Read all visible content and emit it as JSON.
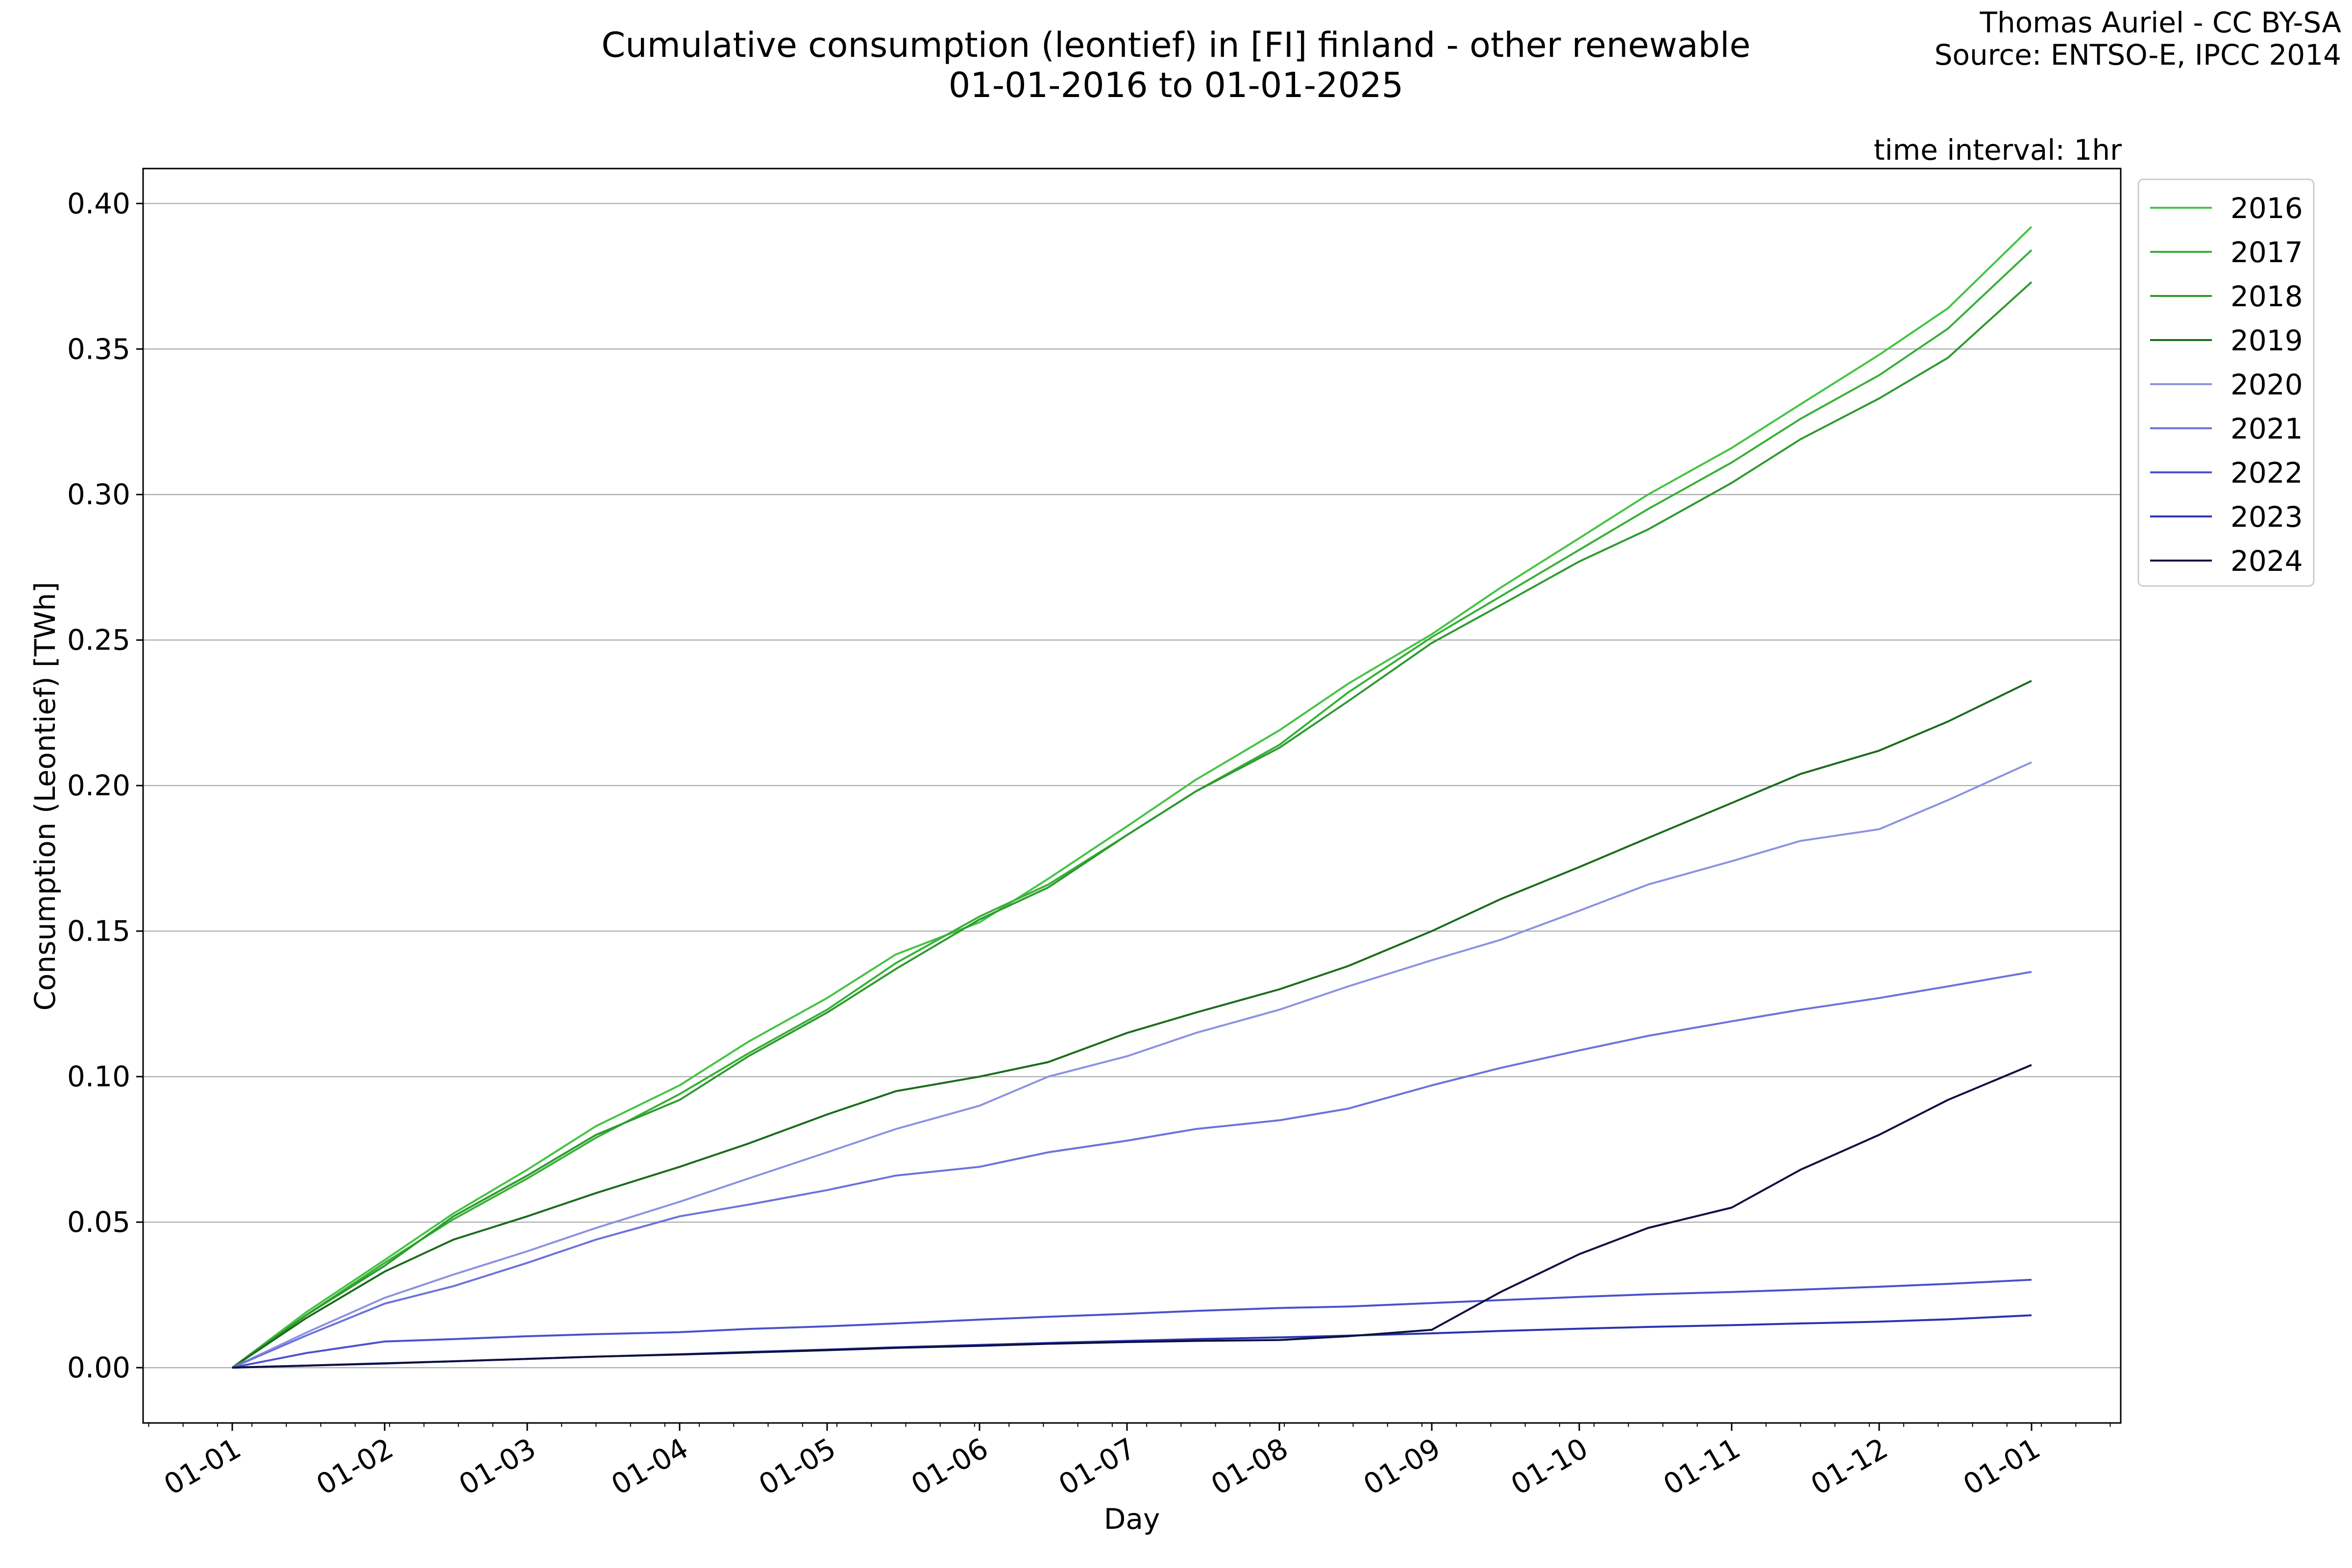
{
  "header": {
    "title_line1": "Cumulative consumption (leontief) in [FI] finland - other renewable",
    "title_line2": "01-01-2016 to 01-01-2025",
    "credit_line1": "Thomas Auriel - CC BY-SA",
    "credit_line2": "Source: ENTSO-E, IPCC 2014",
    "interval_note": "time interval: 1hr"
  },
  "chart_data": {
    "type": "line",
    "xlabel": "Day",
    "ylabel": "Consumption (Leontief) [TWh]",
    "ylim": [
      -0.019,
      0.412
    ],
    "y_ticks": [
      0.0,
      0.05,
      0.1,
      0.15,
      0.2,
      0.25,
      0.3,
      0.35,
      0.4
    ],
    "y_tick_labels": [
      "0.00",
      "0.05",
      "0.10",
      "0.15",
      "0.20",
      "0.25",
      "0.30",
      "0.35",
      "0.40"
    ],
    "x_ticks": [
      "01-01",
      "01-02",
      "01-03",
      "01-04",
      "01-05",
      "01-06",
      "01-07",
      "01-08",
      "01-09",
      "01-10",
      "01-11",
      "01-12",
      "01-01"
    ],
    "grid": "horizontal",
    "legend_position": "outside top-right",
    "x": [
      "01-01",
      "01-16",
      "02-01",
      "02-15",
      "03-01",
      "03-15",
      "04-01",
      "04-15",
      "05-01",
      "05-15",
      "06-01",
      "06-15",
      "07-01",
      "07-15",
      "08-01",
      "08-15",
      "09-01",
      "09-15",
      "10-01",
      "10-15",
      "11-01",
      "11-15",
      "12-01",
      "12-15",
      "12-31"
    ],
    "series": [
      {
        "name": "2016",
        "color": "#44c344",
        "values": [
          0.0,
          0.019,
          0.037,
          0.053,
          0.068,
          0.083,
          0.097,
          0.112,
          0.127,
          0.142,
          0.153,
          0.168,
          0.186,
          0.202,
          0.219,
          0.235,
          0.252,
          0.268,
          0.285,
          0.3,
          0.316,
          0.331,
          0.348,
          0.364,
          0.392
        ]
      },
      {
        "name": "2017",
        "color": "#37b037",
        "values": [
          0.0,
          0.018,
          0.036,
          0.051,
          0.065,
          0.079,
          0.094,
          0.108,
          0.123,
          0.139,
          0.155,
          0.166,
          0.183,
          0.198,
          0.214,
          0.232,
          0.251,
          0.265,
          0.281,
          0.295,
          0.311,
          0.326,
          0.341,
          0.357,
          0.384
        ]
      },
      {
        "name": "2018",
        "color": "#2e9a2e",
        "values": [
          0.0,
          0.018,
          0.035,
          0.052,
          0.066,
          0.08,
          0.092,
          0.107,
          0.122,
          0.137,
          0.154,
          0.165,
          0.183,
          0.198,
          0.213,
          0.229,
          0.249,
          0.262,
          0.277,
          0.288,
          0.304,
          0.319,
          0.333,
          0.347,
          0.373
        ]
      },
      {
        "name": "2019",
        "color": "#1c6b1c",
        "values": [
          0.0,
          0.017,
          0.033,
          0.044,
          0.052,
          0.06,
          0.069,
          0.077,
          0.087,
          0.095,
          0.1,
          0.105,
          0.115,
          0.122,
          0.13,
          0.138,
          0.15,
          0.161,
          0.172,
          0.182,
          0.194,
          0.204,
          0.212,
          0.222,
          0.236
        ]
      },
      {
        "name": "2020",
        "color": "#8c92e2",
        "values": [
          0.0,
          0.012,
          0.024,
          0.032,
          0.04,
          0.048,
          0.057,
          0.065,
          0.074,
          0.082,
          0.09,
          0.1,
          0.107,
          0.115,
          0.123,
          0.131,
          0.14,
          0.147,
          0.157,
          0.166,
          0.174,
          0.181,
          0.185,
          0.195,
          0.208
        ]
      },
      {
        "name": "2021",
        "color": "#6c72dc",
        "values": [
          0.0,
          0.011,
          0.022,
          0.028,
          0.036,
          0.044,
          0.052,
          0.056,
          0.061,
          0.066,
          0.069,
          0.074,
          0.078,
          0.082,
          0.085,
          0.089,
          0.097,
          0.103,
          0.109,
          0.114,
          0.119,
          0.123,
          0.127,
          0.131,
          0.136
        ]
      },
      {
        "name": "2022",
        "color": "#4a52cc",
        "values": [
          0.0,
          0.005,
          0.009,
          0.0098,
          0.0108,
          0.0115,
          0.0122,
          0.0133,
          0.0142,
          0.0152,
          0.0165,
          0.0175,
          0.0185,
          0.0195,
          0.0205,
          0.021,
          0.0222,
          0.0232,
          0.0243,
          0.0252,
          0.026,
          0.0268,
          0.0278,
          0.0288,
          0.0302
        ]
      },
      {
        "name": "2023",
        "color": "#2a33b0",
        "values": [
          0.0,
          0.0007,
          0.0014,
          0.0022,
          0.003,
          0.0038,
          0.0046,
          0.0054,
          0.0062,
          0.007,
          0.0078,
          0.0085,
          0.0092,
          0.0098,
          0.0104,
          0.011,
          0.0118,
          0.0126,
          0.0134,
          0.014,
          0.0146,
          0.0152,
          0.0158,
          0.0166,
          0.018
        ]
      },
      {
        "name": "2024",
        "color": "#0d1040",
        "values": [
          0.0,
          0.0007,
          0.0015,
          0.0022,
          0.003,
          0.0038,
          0.0045,
          0.0052,
          0.006,
          0.0068,
          0.0075,
          0.0082,
          0.0088,
          0.0092,
          0.0095,
          0.0108,
          0.013,
          0.026,
          0.039,
          0.048,
          0.055,
          0.068,
          0.08,
          0.092,
          0.104
        ]
      }
    ]
  }
}
